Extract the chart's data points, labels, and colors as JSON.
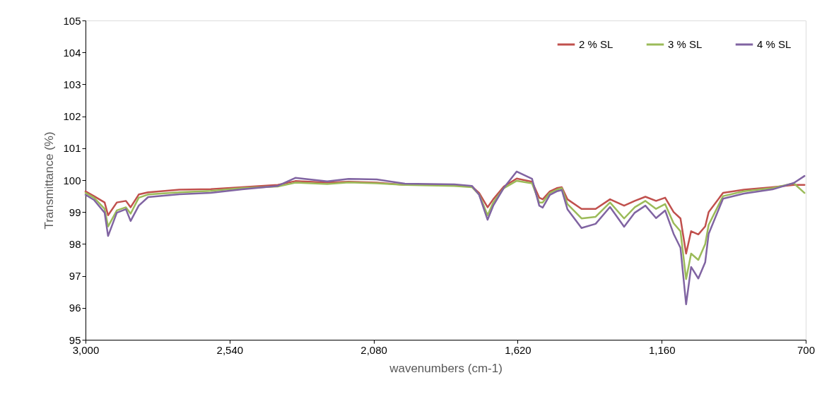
{
  "chart_data": {
    "type": "line",
    "xlabel": "wavenumbers (cm-1)",
    "ylabel": "Transmittance (%)",
    "xlim": [
      3000,
      700
    ],
    "xticks": [
      {
        "value": 3000,
        "label": "3,000"
      },
      {
        "value": 2540,
        "label": "2,540"
      },
      {
        "value": 2080,
        "label": "2,080"
      },
      {
        "value": 1620,
        "label": "1,620"
      },
      {
        "value": 1160,
        "label": "1,160"
      },
      700
    ],
    "ylim": [
      95,
      105
    ],
    "yticks": [
      95,
      96,
      97,
      98,
      99,
      100,
      101,
      102,
      103,
      104,
      105
    ],
    "x": [
      3000,
      2973,
      2939,
      2928,
      2900,
      2871,
      2856,
      2830,
      2800,
      2700,
      2600,
      2500,
      2386,
      2330,
      2228,
      2160,
      2070,
      1980,
      1822,
      1766,
      1743,
      1716,
      1698,
      1664,
      1623,
      1574,
      1551,
      1540,
      1517,
      1495,
      1479,
      1461,
      1416,
      1371,
      1325,
      1280,
      1246,
      1212,
      1178,
      1149,
      1122,
      1100,
      1082,
      1066,
      1043,
      1021,
      1010,
      964,
      897,
      806,
      738,
      704
    ],
    "series": [
      {
        "name": "2 % SL",
        "color": "#c0504d",
        "values": [
          99.65,
          99.5,
          99.3,
          98.9,
          99.3,
          99.35,
          99.15,
          99.55,
          99.62,
          99.7,
          99.72,
          99.78,
          99.85,
          99.97,
          99.92,
          99.95,
          99.92,
          99.85,
          99.85,
          99.8,
          99.6,
          99.15,
          99.4,
          99.8,
          100.05,
          99.95,
          99.45,
          99.4,
          99.65,
          99.75,
          99.78,
          99.4,
          99.1,
          99.1,
          99.4,
          99.2,
          99.35,
          99.48,
          99.35,
          99.45,
          99.0,
          98.8,
          97.7,
          98.4,
          98.3,
          98.55,
          99.0,
          99.6,
          99.7,
          99.78,
          99.85,
          99.85
        ]
      },
      {
        "name": "3 % SL",
        "color": "#9bbb59",
        "values": [
          99.6,
          99.45,
          99.1,
          98.55,
          99.05,
          99.15,
          98.95,
          99.45,
          99.55,
          99.62,
          99.66,
          99.75,
          99.8,
          99.92,
          99.88,
          99.93,
          99.9,
          99.85,
          99.82,
          99.78,
          99.55,
          98.9,
          99.3,
          99.75,
          99.98,
          99.9,
          99.3,
          99.3,
          99.6,
          99.7,
          99.75,
          99.25,
          98.8,
          98.85,
          99.3,
          98.8,
          99.15,
          99.35,
          99.1,
          99.25,
          98.65,
          98.4,
          96.9,
          97.7,
          97.5,
          98.0,
          98.6,
          99.5,
          99.65,
          99.75,
          99.9,
          99.6
        ]
      },
      {
        "name": "4 % SL",
        "color": "#8064a2",
        "values": [
          99.54,
          99.38,
          98.98,
          98.25,
          98.98,
          99.09,
          98.72,
          99.2,
          99.47,
          99.56,
          99.6,
          99.71,
          99.82,
          100.07,
          99.96,
          100.04,
          100.02,
          99.89,
          99.87,
          99.82,
          99.54,
          98.76,
          99.2,
          99.76,
          100.27,
          100.04,
          99.2,
          99.14,
          99.54,
          99.65,
          99.69,
          99.09,
          98.5,
          98.63,
          99.16,
          98.54,
          98.98,
          99.2,
          98.81,
          99.05,
          98.32,
          97.88,
          96.11,
          97.28,
          96.92,
          97.43,
          98.32,
          99.42,
          99.58,
          99.71,
          99.91,
          100.13
        ]
      }
    ],
    "legend": "top right",
    "grid": false,
    "marker": "none",
    "line_style": "solid"
  }
}
